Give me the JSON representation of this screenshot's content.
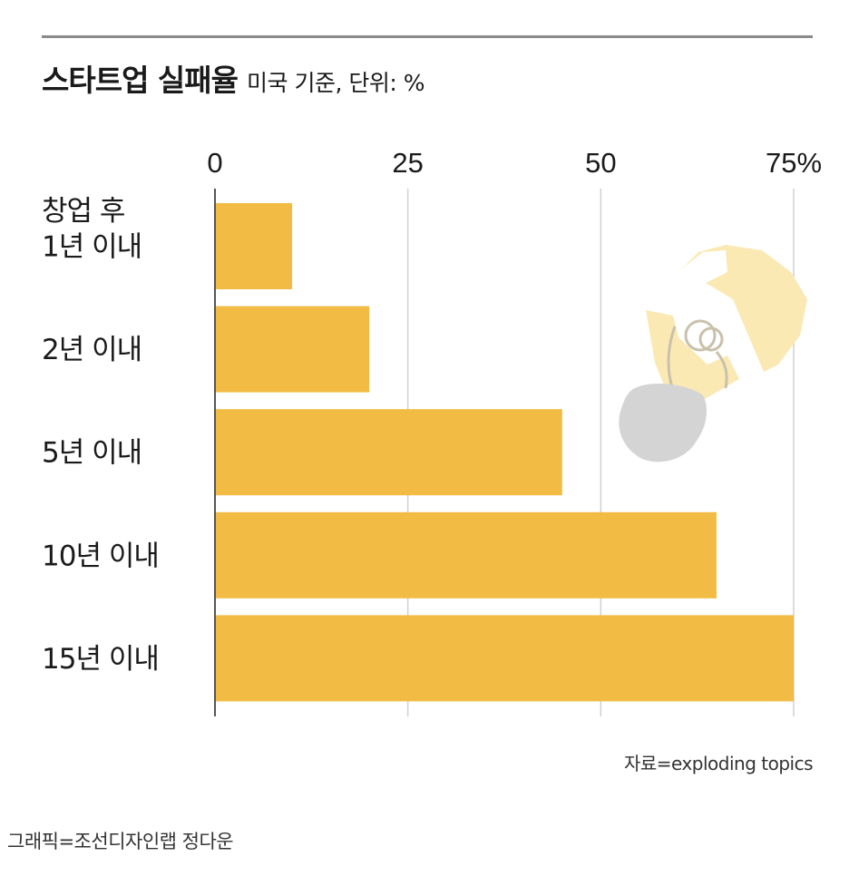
{
  "title": "스타트업 실패율",
  "subtitle": "미국 기준, 단위: %",
  "source": "자료=exploding topics",
  "credit": "그래픽=조선디자인랩 정다운",
  "colors": {
    "bar": "#f2bc44",
    "grid": "#d0d0d0",
    "axis": "#555555",
    "bulb": "#fbe9b4",
    "bulb_base": "#d4d4d4"
  },
  "illustration": "broken-lightbulb-icon",
  "chart_data": {
    "type": "bar",
    "orientation": "horizontal",
    "y_header": "창업 후",
    "categories": [
      "1년 이내",
      "2년 이내",
      "5년 이내",
      "10년 이내",
      "15년 이내"
    ],
    "values": [
      10,
      20,
      45,
      65,
      75
    ],
    "xlim": [
      0,
      75
    ],
    "x_ticks": [
      0,
      25,
      50,
      75
    ],
    "x_tick_labels": [
      "0",
      "25",
      "50",
      "75%"
    ],
    "grid": true
  }
}
